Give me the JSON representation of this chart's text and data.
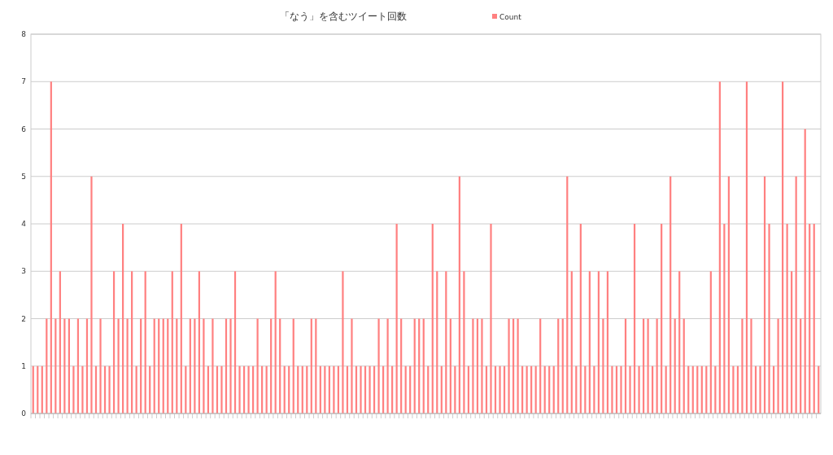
{
  "chart_data": {
    "type": "bar",
    "title": "「なう」を含むツイート回数",
    "categories": [
      null,
      null,
      null,
      null,
      null,
      null,
      null,
      null,
      null,
      null,
      null,
      null,
      null,
      null,
      null,
      null,
      null,
      null,
      null,
      null,
      null,
      null,
      null,
      null,
      null,
      null,
      null,
      null,
      null,
      null,
      null,
      null,
      null,
      null,
      null,
      null,
      null,
      null,
      null,
      null,
      null,
      null,
      null,
      null,
      null,
      null,
      null,
      null,
      null,
      null,
      null,
      null,
      null,
      null,
      null,
      null,
      null,
      null,
      null,
      null,
      null,
      null,
      null,
      null,
      null,
      null,
      null,
      null,
      null,
      null,
      null,
      null,
      null,
      null,
      null,
      null,
      null,
      null,
      null,
      null,
      null,
      null,
      null,
      null,
      null,
      null,
      null,
      null,
      null,
      null,
      null,
      null,
      null,
      null,
      null,
      null,
      null,
      null,
      null,
      null,
      null,
      null,
      null,
      null,
      null,
      null,
      null,
      null,
      null,
      null,
      null,
      null,
      null,
      null,
      null,
      null,
      null,
      null,
      null,
      null,
      null,
      null,
      null,
      null,
      null,
      null,
      null,
      null,
      null,
      null,
      null,
      null,
      null,
      null,
      null,
      null,
      null,
      null,
      null,
      null,
      null,
      null,
      null,
      null,
      null,
      null,
      null,
      null,
      null,
      null,
      null,
      null,
      null,
      null,
      null,
      null,
      null,
      null,
      null,
      null,
      null,
      null,
      null,
      null,
      null,
      null,
      null,
      null,
      null,
      null,
      null,
      null,
      null,
      null,
      null,
      null
    ],
    "series": [
      {
        "name": "Count",
        "color": "#ff8080",
        "values": [
          1,
          1,
          1,
          2,
          7,
          2,
          3,
          2,
          2,
          1,
          2,
          1,
          2,
          5,
          1,
          2,
          1,
          1,
          3,
          2,
          4,
          2,
          3,
          1,
          2,
          3,
          1,
          2,
          2,
          2,
          2,
          3,
          2,
          4,
          1,
          2,
          2,
          3,
          2,
          1,
          2,
          1,
          1,
          2,
          2,
          3,
          1,
          1,
          1,
          1,
          2,
          1,
          1,
          2,
          3,
          2,
          1,
          1,
          2,
          1,
          1,
          1,
          2,
          2,
          1,
          1,
          1,
          1,
          1,
          3,
          1,
          2,
          1,
          1,
          1,
          1,
          1,
          2,
          1,
          2,
          1,
          4,
          2,
          1,
          1,
          2,
          2,
          2,
          1,
          4,
          3,
          1,
          3,
          2,
          1,
          5,
          3,
          1,
          2,
          2,
          2,
          1,
          4,
          1,
          1,
          1,
          2,
          2,
          2,
          1,
          1,
          1,
          1,
          2,
          1,
          1,
          1,
          2,
          2,
          5,
          3,
          1,
          4,
          1,
          3,
          1,
          3,
          2,
          3,
          1,
          1,
          1,
          2,
          1,
          4,
          1,
          2,
          2,
          1,
          2,
          4,
          1,
          5,
          2,
          3,
          2,
          1,
          1,
          1,
          1,
          1,
          3,
          1,
          7,
          4,
          5,
          1,
          1,
          2,
          7,
          2,
          1,
          1,
          5,
          4,
          1,
          2,
          7,
          4,
          3,
          5,
          2,
          6,
          4,
          4,
          1
        ]
      }
    ],
    "ylim": [
      0,
      8
    ],
    "yticks": [
      0,
      1,
      2,
      3,
      4,
      5,
      6,
      7,
      8
    ],
    "grid": "y",
    "legend": "top"
  }
}
